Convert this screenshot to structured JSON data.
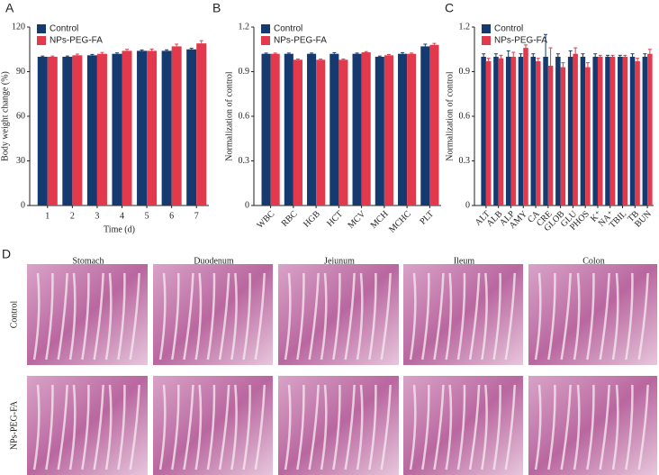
{
  "chart_data": [
    {
      "type": "bar",
      "panel": "A",
      "ylabel": "Body weight change (%)",
      "xlabel": "Time (d)",
      "categories": [
        "1",
        "2",
        "3",
        "4",
        "5",
        "6",
        "7"
      ],
      "series": [
        {
          "name": "Control",
          "color": "#143a70",
          "values": [
            100,
            100,
            101,
            102,
            104,
            104,
            105
          ],
          "errors": [
            0.5,
            0.5,
            0.6,
            0.6,
            0.6,
            0.7,
            0.7
          ]
        },
        {
          "name": "NPs-PEG-FA",
          "color": "#e23a4c",
          "values": [
            100,
            101,
            102,
            104,
            104,
            107,
            109
          ],
          "errors": [
            0.5,
            0.8,
            0.9,
            1.0,
            1.2,
            1.5,
            1.8
          ]
        }
      ],
      "ylim": [
        0,
        120
      ],
      "yticks": [
        0,
        30,
        60,
        90,
        120
      ],
      "legend": "upper left",
      "xtick_rotation": 0
    },
    {
      "type": "bar",
      "panel": "B",
      "ylabel": "Normalization of control",
      "categories": [
        "WBC",
        "RBC",
        "HGB",
        "HCT",
        "MCV",
        "MCH",
        "MCHC",
        "PLT"
      ],
      "series": [
        {
          "name": "Control",
          "color": "#143a70",
          "values": [
            1.02,
            1.02,
            1.02,
            1.02,
            1.02,
            1.0,
            1.02,
            1.07
          ],
          "errors": [
            0.005,
            0.005,
            0.005,
            0.008,
            0.005,
            0.005,
            0.008,
            0.015
          ]
        },
        {
          "name": "NPs-PEG-FA",
          "color": "#e23a4c",
          "values": [
            1.02,
            0.98,
            0.98,
            0.98,
            1.03,
            1.01,
            1.02,
            1.08
          ],
          "errors": [
            0.005,
            0.005,
            0.005,
            0.005,
            0.005,
            0.005,
            0.005,
            0.01
          ]
        }
      ],
      "ylim": [
        0,
        1.2
      ],
      "yticks": [
        0,
        0.3,
        0.6,
        0.9,
        1.2
      ],
      "legend": "upper left",
      "xtick_rotation": 45
    },
    {
      "type": "bar",
      "panel": "C",
      "ylabel": "Normalization of control",
      "categories": [
        "ALT",
        "ALB",
        "ALP",
        "AMY",
        "CA",
        "CRE",
        "GLOB",
        "GLU",
        "PHOS",
        "K⁺",
        "NA⁺",
        "TBIL",
        "TB",
        "BUN"
      ],
      "series": [
        {
          "name": "Control",
          "color": "#143a70",
          "values": [
            1.0,
            1.0,
            1.0,
            1.0,
            1.0,
            1.0,
            1.0,
            1.0,
            1.0,
            1.0,
            1.0,
            1.0,
            1.0,
            1.0
          ],
          "errors": [
            0.02,
            0.02,
            0.04,
            0.02,
            0.02,
            0.15,
            0.02,
            0.04,
            0.02,
            0.02,
            0.01,
            0.01,
            0.02,
            0.02
          ]
        },
        {
          "name": "NPs-PEG-FA",
          "color": "#e23a4c",
          "values": [
            0.97,
            0.99,
            1.0,
            1.06,
            0.97,
            0.94,
            0.93,
            1.02,
            0.93,
            1.0,
            1.0,
            1.0,
            0.97,
            1.02
          ],
          "errors": [
            0.02,
            0.02,
            0.03,
            0.02,
            0.02,
            0.12,
            0.03,
            0.04,
            0.03,
            0.01,
            0.01,
            0.01,
            0.02,
            0.03
          ]
        }
      ],
      "ylim": [
        0,
        1.2
      ],
      "yticks": [
        0,
        0.3,
        0.6,
        0.9,
        1.2
      ],
      "legend": "upper left",
      "xtick_rotation": 45
    }
  ],
  "panel_d": {
    "panel": "D",
    "columns": [
      "Stomach",
      "Duodenum",
      "Jejunum",
      "Ileum",
      "Colon"
    ],
    "rows": [
      "Control",
      "NPs-PEG-FA"
    ]
  }
}
